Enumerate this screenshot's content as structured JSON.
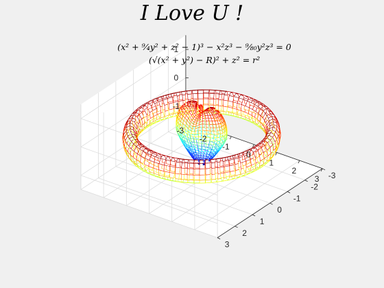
{
  "chart_data": {
    "type": "surface3d",
    "title": "I Love U !",
    "equations": [
      "(x² + (9/4)y² + z² − 1)³ − x²z³ − (9/80)y²z³ = 0",
      "(√(x² + y²) − R)² + z² = r²"
    ],
    "equation_display": [
      "(x² + ⁹⁄₄y² + z² − 1)³ − x²z³ − ⁹⁄₈₀y²z³ = 0",
      "(√(x² + y²) − R)² + z² = r²"
    ],
    "xlim": [
      -3,
      3
    ],
    "ylim": [
      -3,
      3
    ],
    "zlim": [
      -1.5,
      1.5
    ],
    "x_ticks": [
      "-3",
      "-2",
      "-1",
      "0",
      "1",
      "2",
      "3"
    ],
    "y_ticks": [
      "-3",
      "-2",
      "-1",
      "0",
      "1",
      "2",
      "3"
    ],
    "z_ticks": [
      "-1",
      "0",
      "1"
    ],
    "grid": true,
    "box": "open",
    "view": {
      "azimuth": -37.5,
      "elevation": 30
    },
    "colormap": "jet",
    "surfaces": [
      {
        "shape": "torus",
        "R": 2.5,
        "r": 0.25
      },
      {
        "shape": "heart",
        "x_extent": [
          -1.1,
          1.1
        ],
        "y_extent": [
          -0.7,
          0.7
        ],
        "z_extent": [
          -1.0,
          1.2
        ]
      }
    ]
  }
}
